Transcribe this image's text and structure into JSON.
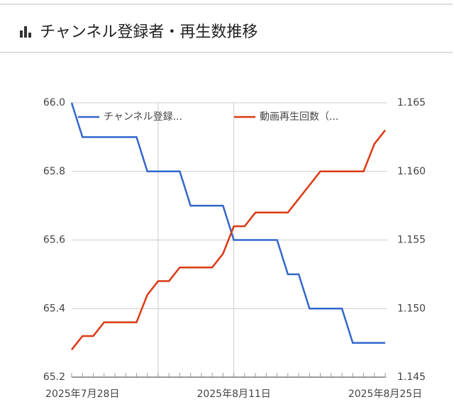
{
  "header": {
    "title": "チャンネル登録者・再生数推移"
  },
  "chart_data": {
    "type": "line",
    "categories": [
      null,
      "2025年7月28日",
      null,
      null,
      null,
      null,
      null,
      null,
      null,
      null,
      null,
      null,
      null,
      null,
      null,
      "2025年8月11日",
      null,
      null,
      null,
      null,
      null,
      null,
      null,
      null,
      null,
      null,
      null,
      null,
      null,
      "2025年8月25日"
    ],
    "series": [
      {
        "name": "チャンネル登録...",
        "color": "#3366cc",
        "values": [
          66.0,
          65.9,
          65.9,
          65.9,
          65.9,
          65.9,
          65.9,
          65.8,
          65.8,
          65.8,
          65.8,
          65.7,
          65.7,
          65.7,
          65.7,
          65.6,
          65.6,
          65.6,
          65.6,
          65.6,
          65.5,
          65.5,
          65.4,
          65.4,
          65.4,
          65.4,
          65.3,
          65.3,
          65.3,
          65.3
        ]
      },
      {
        "name": "動画再生回数（...",
        "color": "#dc3912",
        "axis": "y2",
        "values": [
          1.147,
          1.148,
          1.148,
          1.149,
          1.149,
          1.149,
          1.149,
          1.151,
          1.152,
          1.152,
          1.153,
          1.153,
          1.153,
          1.153,
          1.154,
          1.156,
          1.156,
          1.157,
          1.157,
          1.157,
          1.157,
          1.158,
          1.159,
          1.16,
          1.16,
          1.16,
          1.16,
          1.16,
          1.162,
          1.163
        ]
      }
    ],
    "ylim": [
      65.2,
      66.0
    ],
    "yticks": [
      65.2,
      65.4,
      65.6,
      65.8,
      {
        "value": 66.0,
        "label": "66.0"
      }
    ],
    "y2lim": [
      1.145,
      1.165
    ],
    "y2ticks": [
      1.145,
      {
        "value": 1.15,
        "label": "1.150"
      },
      1.155,
      {
        "value": 1.16,
        "label": "1.160"
      },
      1.165
    ],
    "grid": true
  }
}
